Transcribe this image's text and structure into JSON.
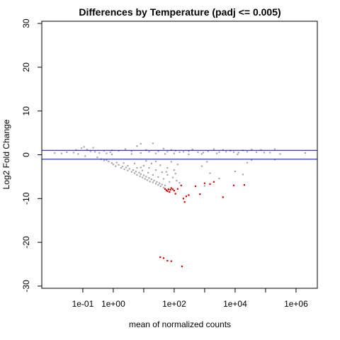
{
  "chart_data": {
    "type": "scatter",
    "title": "Differences by Temperature (padj <= 0.005)",
    "xlabel": "mean of normalized counts",
    "ylabel": "Log2 Fold Change",
    "x_scale": "log10",
    "xlim": [
      0.0045,
      5000000
    ],
    "ylim": [
      -30.5,
      30.5
    ],
    "x_ticks": [
      {
        "value": 0.1,
        "label": "1e-01"
      },
      {
        "value": 1,
        "label": "1e+00"
      },
      {
        "value": 10,
        "label": ""
      },
      {
        "value": 100,
        "label": "1e+02"
      },
      {
        "value": 1000,
        "label": ""
      },
      {
        "value": 10000,
        "label": "1e+04"
      },
      {
        "value": 100000,
        "label": ""
      },
      {
        "value": 1000000,
        "label": "1e+06"
      }
    ],
    "y_ticks": [
      {
        "value": -30,
        "label": "-30"
      },
      {
        "value": -20,
        "label": "-20"
      },
      {
        "value": -10,
        "label": "-10"
      },
      {
        "value": 0,
        "label": "0"
      },
      {
        "value": 10,
        "label": "10"
      },
      {
        "value": 20,
        "label": "20"
      },
      {
        "value": 30,
        "label": "30"
      }
    ],
    "hlines": [
      {
        "y": 1,
        "color": "#0000cc"
      },
      {
        "y": -1,
        "color": "#0000cc"
      }
    ],
    "grid": false,
    "series": [
      {
        "color": "#a9a9a9",
        "points": [
          [
            0.012,
            0.4
          ],
          [
            0.02,
            0.3
          ],
          [
            0.03,
            0.6
          ],
          [
            0.05,
            0.5
          ],
          [
            0.06,
            1.1
          ],
          [
            0.07,
            0.2
          ],
          [
            0.09,
            1.5
          ],
          [
            0.11,
            1.8
          ],
          [
            0.12,
            -0.3
          ],
          [
            0.14,
            1.2
          ],
          [
            0.18,
            0.8
          ],
          [
            0.22,
            1.6
          ],
          [
            0.25,
            0.7
          ],
          [
            0.35,
            0.4
          ],
          [
            0.5,
            0.9
          ],
          [
            0.8,
            0.6
          ],
          [
            0.9,
            1.0
          ],
          [
            1.5,
            0.9
          ],
          [
            2.5,
            1.3
          ],
          [
            4,
            0.8
          ],
          [
            6,
            2.0
          ],
          [
            8,
            2.5
          ],
          [
            12,
            1.1
          ],
          [
            15,
            0.7
          ],
          [
            20,
            2.6
          ],
          [
            30,
            0.8
          ],
          [
            45,
            1.4
          ],
          [
            60,
            0.7
          ],
          [
            80,
            1.1
          ],
          [
            110,
            0.9
          ],
          [
            150,
            0.6
          ],
          [
            200,
            0.7
          ],
          [
            300,
            0.8
          ],
          [
            400,
            1.2
          ],
          [
            600,
            0.6
          ],
          [
            900,
            0.5
          ],
          [
            1300,
            0.8
          ],
          [
            2000,
            1.3
          ],
          [
            3000,
            0.6
          ],
          [
            4000,
            1.1
          ],
          [
            5000,
            0.7
          ],
          [
            7000,
            0.9
          ],
          [
            9000,
            0.6
          ],
          [
            13000,
            0.5
          ],
          [
            18000,
            1.0
          ],
          [
            25000,
            0.7
          ],
          [
            35000,
            1.2
          ],
          [
            50000,
            0.6
          ],
          [
            70000,
            1.1
          ],
          [
            90000,
            0.5
          ],
          [
            140000,
            0.5
          ],
          [
            200000,
            1.3
          ],
          [
            300000,
            0.2
          ],
          [
            2000000,
            0.4
          ],
          [
            0.9,
            0.1
          ],
          [
            0.6,
            0.3
          ],
          [
            4,
            0.2
          ],
          [
            8,
            0.4
          ],
          [
            25,
            0.3
          ],
          [
            50,
            0.2
          ],
          [
            100,
            0.3
          ],
          [
            300,
            0.1
          ],
          [
            800,
            0.2
          ],
          [
            2500,
            0.3
          ],
          [
            12000,
            0.1
          ],
          [
            0.3,
            -0.6
          ],
          [
            0.4,
            -1.0
          ],
          [
            0.5,
            -1.3
          ],
          [
            0.7,
            -1.5
          ],
          [
            0.9,
            -1.9
          ],
          [
            1.0,
            -2.2
          ],
          [
            1.2,
            -2.6
          ],
          [
            1.5,
            -2.3
          ],
          [
            1.8,
            -3.0
          ],
          [
            2.0,
            -2.7
          ],
          [
            2.3,
            -3.3
          ],
          [
            2.6,
            -2.9
          ],
          [
            3.0,
            -3.6
          ],
          [
            3.4,
            -3.2
          ],
          [
            4,
            -3.9
          ],
          [
            4.5,
            -3.5
          ],
          [
            5,
            -4.2
          ],
          [
            5.5,
            -3.8
          ],
          [
            6,
            -4.6
          ],
          [
            7,
            -4.1
          ],
          [
            7.5,
            -4.9
          ],
          [
            8,
            -4.4
          ],
          [
            9,
            -5.2
          ],
          [
            10,
            -4.7
          ],
          [
            11,
            -5.5
          ],
          [
            12,
            -5.0
          ],
          [
            13,
            -5.8
          ],
          [
            15,
            -5.3
          ],
          [
            16,
            -6.1
          ],
          [
            18,
            -5.6
          ],
          [
            20,
            -6.3
          ],
          [
            22,
            -5.9
          ],
          [
            25,
            -6.6
          ],
          [
            27,
            -6.2
          ],
          [
            30,
            -6.9
          ],
          [
            33,
            -6.5
          ],
          [
            36,
            -7.2
          ],
          [
            40,
            -6.8
          ],
          [
            45,
            -7.5
          ],
          [
            50,
            -7.0
          ],
          [
            3,
            -2.5
          ],
          [
            6,
            -3.0
          ],
          [
            9,
            -3.6
          ],
          [
            14,
            -4.1
          ],
          [
            20,
            -4.6
          ],
          [
            30,
            -5.1
          ],
          [
            45,
            -5.5
          ],
          [
            70,
            -6.2
          ],
          [
            5,
            -2.0
          ],
          [
            10,
            -2.5
          ],
          [
            15,
            -3.0
          ],
          [
            25,
            -3.5
          ],
          [
            40,
            -4.0
          ],
          [
            60,
            -4.6
          ],
          [
            90,
            -5.2
          ],
          [
            120,
            -5.9
          ],
          [
            150,
            -6.4
          ],
          [
            18,
            -2.0
          ],
          [
            35,
            -2.4
          ],
          [
            60,
            -3.0
          ],
          [
            100,
            -3.5
          ],
          [
            130,
            -2.2
          ],
          [
            80,
            -1.6
          ],
          [
            25,
            -1.5
          ],
          [
            12,
            -1.4
          ],
          [
            1.3,
            -1.8
          ],
          [
            0.6,
            -1.2
          ],
          [
            2.2,
            -1.9
          ],
          [
            8,
            -2.9
          ],
          [
            55,
            -3.9
          ],
          [
            110,
            -4.3
          ],
          [
            1500,
            -4.2
          ],
          [
            1000,
            -7.1
          ],
          [
            3000,
            -5.4
          ],
          [
            10000,
            -3.8
          ],
          [
            18000,
            -4.5
          ],
          [
            25000,
            -1.8
          ],
          [
            35000,
            -1.2
          ],
          [
            200000,
            -1.1
          ],
          [
            800,
            -2.6
          ],
          [
            1200,
            -1.6
          ]
        ]
      },
      {
        "color": "#cc0000",
        "points": [
          [
            50,
            -7.8
          ],
          [
            55,
            -8.1
          ],
          [
            60,
            -8.3
          ],
          [
            65,
            -7.9
          ],
          [
            70,
            -8.5
          ],
          [
            75,
            -8.0
          ],
          [
            80,
            -7.6
          ],
          [
            90,
            -7.9
          ],
          [
            100,
            -8.2
          ],
          [
            110,
            -8.9
          ],
          [
            130,
            -7.8
          ],
          [
            170,
            -7.0
          ],
          [
            200,
            -10.0
          ],
          [
            220,
            -10.8
          ],
          [
            250,
            -9.5
          ],
          [
            300,
            -9.2
          ],
          [
            500,
            -7.2
          ],
          [
            700,
            -9.0
          ],
          [
            1000,
            -6.5
          ],
          [
            1500,
            -6.7
          ],
          [
            2000,
            -6.2
          ],
          [
            4000,
            -9.7
          ],
          [
            9000,
            -7.0
          ],
          [
            20000,
            -6.9
          ],
          [
            35,
            -23.4
          ],
          [
            45,
            -23.6
          ],
          [
            60,
            -24.2
          ],
          [
            80,
            -24.3
          ],
          [
            180,
            -25.5
          ]
        ]
      }
    ]
  }
}
